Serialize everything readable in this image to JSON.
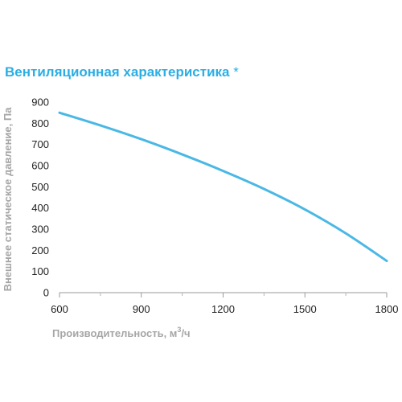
{
  "chart_data": {
    "type": "line",
    "title": "Вентиляционная характеристика",
    "title_mark": "*",
    "xlabel": "Производительность, м",
    "xlabel_sup": "3",
    "xlabel_suffix": "/ч",
    "ylabel": "Внешнее статическое давление, Па",
    "xlim": [
      600,
      1800
    ],
    "ylim": [
      0,
      900
    ],
    "x_ticks": [
      600,
      900,
      1200,
      1500,
      1800
    ],
    "x_minor_ticks": [
      750,
      1050,
      1350,
      1650
    ],
    "y_ticks": [
      0,
      100,
      200,
      300,
      400,
      500,
      600,
      700,
      800,
      900
    ],
    "grid": false,
    "series": [
      {
        "color": "#4ab8e5",
        "x": [
          600,
          750,
          900,
          1050,
          1200,
          1350,
          1500,
          1650,
          1800
        ],
        "y": [
          850,
          790,
          725,
          653,
          575,
          490,
          393,
          280,
          150
        ]
      }
    ]
  }
}
